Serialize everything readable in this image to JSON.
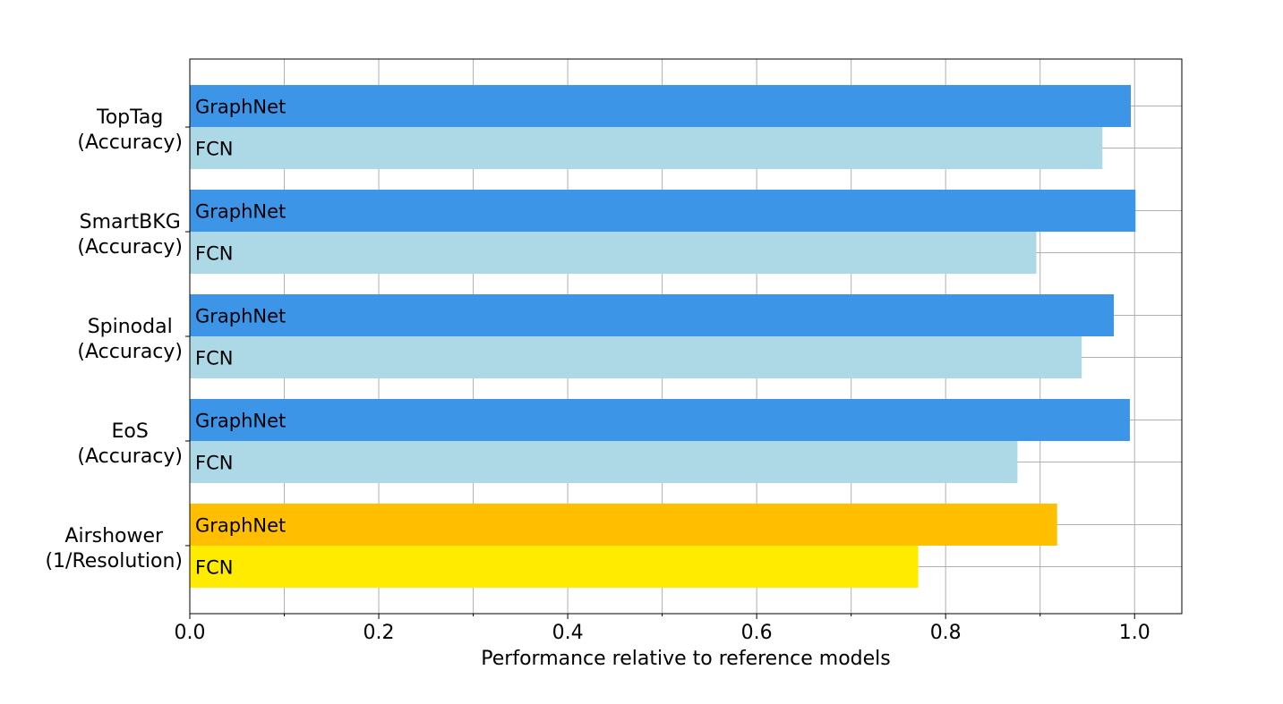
{
  "chart_data": {
    "type": "bar",
    "orientation": "horizontal",
    "title": "",
    "xlabel": "Performance relative to reference models",
    "ylabel": "",
    "xlim": [
      0,
      1.05
    ],
    "x_ticks_major": [
      "0.0",
      "0.2",
      "0.4",
      "0.6",
      "0.8",
      "1.0"
    ],
    "x_ticks_minor": [
      0.1,
      0.3,
      0.5,
      0.7,
      0.9
    ],
    "grid": true,
    "categories": [
      {
        "name": "TopTag",
        "metric": "(Accuracy)"
      },
      {
        "name": "SmartBKG",
        "metric": "(Accuracy)"
      },
      {
        "name": "Spinodal",
        "metric": "(Accuracy)"
      },
      {
        "name": "EoS",
        "metric": "(Accuracy)"
      },
      {
        "name": "Airshower",
        "metric": "(1/Resolution)"
      }
    ],
    "series": [
      {
        "name": "GraphNet",
        "values": [
          0.996,
          1.001,
          0.978,
          0.995,
          0.918
        ],
        "colors": [
          "#3d95e8",
          "#3d95e8",
          "#3d95e8",
          "#3d95e8",
          "#ffbf00"
        ]
      },
      {
        "name": "FCN",
        "values": [
          0.966,
          0.896,
          0.944,
          0.876,
          0.771
        ],
        "colors": [
          "#add8e6",
          "#add8e6",
          "#add8e6",
          "#add8e6",
          "#ffeb00"
        ]
      }
    ]
  }
}
